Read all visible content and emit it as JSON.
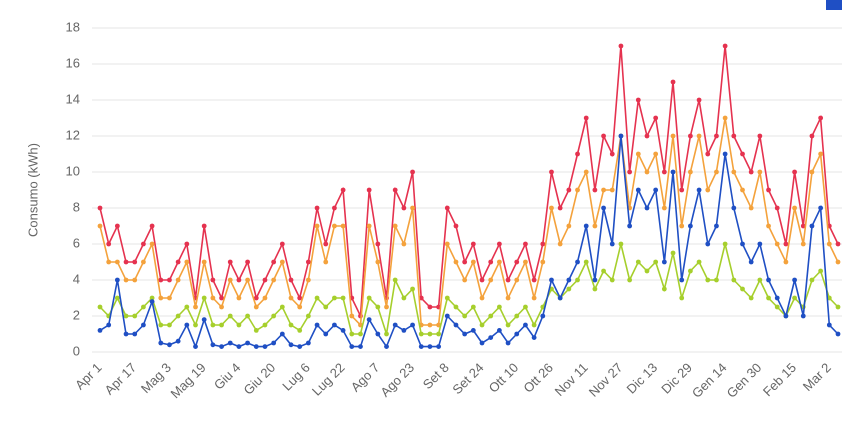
{
  "chart_data": {
    "type": "line",
    "y_label": "Consumo (kWh)",
    "categories": [
      "Apr 1",
      null,
      null,
      null,
      "Apr 17",
      null,
      null,
      null,
      "Mag 3",
      null,
      null,
      null,
      "Mag 19",
      null,
      null,
      null,
      "Giu 4",
      null,
      null,
      null,
      "Giu 20",
      null,
      null,
      null,
      "Lug 6",
      null,
      null,
      null,
      "Lug 22",
      null,
      null,
      null,
      "Ago 7",
      null,
      null,
      null,
      "Ago 23",
      null,
      null,
      null,
      "Set 8",
      null,
      null,
      null,
      "Set 24",
      null,
      null,
      null,
      "Ott 10",
      null,
      null,
      null,
      "Ott 26",
      null,
      null,
      null,
      "Nov 11",
      null,
      null,
      null,
      "Nov 27",
      null,
      null,
      null,
      "Dic 13",
      null,
      null,
      null,
      "Dic 29",
      null,
      null,
      null,
      "Gen 14",
      null,
      null,
      null,
      "Gen 30",
      null,
      null,
      null,
      "Feb 15",
      null,
      null,
      null,
      "Mar 2",
      null
    ],
    "series": [
      {
        "color": "#e5324f",
        "values": [
          8,
          6,
          7,
          5,
          5,
          6,
          7,
          4,
          4,
          5,
          6,
          3,
          7,
          4,
          3,
          5,
          4,
          5,
          3,
          4,
          5,
          6,
          4,
          3,
          5,
          8,
          6,
          8,
          9,
          3,
          2,
          9,
          6,
          3,
          9,
          8,
          10,
          3,
          2.5,
          2.5,
          8,
          7,
          5,
          6,
          4,
          5,
          6,
          4,
          5,
          6,
          4,
          6,
          10,
          8,
          9,
          11,
          13,
          9,
          12,
          11,
          17,
          10,
          14,
          12,
          13,
          10,
          15,
          9,
          12,
          14,
          11,
          12,
          17,
          12,
          11,
          10,
          12,
          9,
          8,
          6,
          10,
          7,
          12,
          13,
          7,
          6
        ]
      },
      {
        "color": "#f4a23c",
        "values": [
          7,
          5,
          5,
          4,
          4,
          5,
          6,
          3,
          3,
          4,
          5,
          2.5,
          5,
          3,
          2.5,
          4,
          3,
          4,
          2.5,
          3,
          4,
          5,
          3,
          2.5,
          4,
          7,
          5,
          7,
          7,
          2,
          1.5,
          7,
          5,
          2.5,
          7,
          6,
          8,
          1.5,
          1.5,
          1.5,
          6,
          5,
          4,
          5,
          3,
          4,
          5,
          3,
          4,
          5,
          3,
          5,
          8,
          6,
          7,
          9,
          10,
          7,
          9,
          9,
          12,
          8,
          11,
          10,
          11,
          8,
          12,
          7,
          10,
          12,
          9,
          10,
          13,
          10,
          9,
          8,
          10,
          7,
          6,
          5,
          8,
          6,
          10,
          11,
          6,
          5
        ]
      },
      {
        "color": "#a6cf2c",
        "values": [
          2.5,
          2,
          3,
          2,
          2,
          2.5,
          3,
          1.5,
          1.5,
          2,
          2.5,
          1.5,
          3,
          1.5,
          1.5,
          2,
          1.5,
          2,
          1.2,
          1.5,
          2,
          2.5,
          1.5,
          1.2,
          2,
          3,
          2.5,
          3,
          3,
          1,
          1,
          3,
          2.5,
          1,
          4,
          3,
          3.5,
          1,
          1,
          1,
          3,
          2.5,
          2,
          2.5,
          1.5,
          2,
          2.5,
          1.5,
          2,
          2.5,
          1.5,
          2.5,
          3.5,
          3,
          3.5,
          4,
          5,
          3.5,
          4.5,
          4,
          6,
          4,
          5,
          4.5,
          5,
          3.5,
          5.5,
          3,
          4.5,
          5,
          4,
          4,
          6,
          4,
          3.5,
          3,
          4,
          3,
          2.5,
          2,
          3,
          2.5,
          4,
          4.5,
          3,
          2.5
        ]
      },
      {
        "color": "#1f4fc4",
        "values": [
          1.2,
          1.5,
          4,
          1,
          1,
          1.5,
          2.8,
          0.5,
          0.4,
          0.6,
          1.5,
          0.3,
          1.8,
          0.4,
          0.3,
          0.5,
          0.3,
          0.5,
          0.3,
          0.3,
          0.5,
          1,
          0.4,
          0.3,
          0.5,
          1.5,
          1,
          1.5,
          1.2,
          0.3,
          0.3,
          1.8,
          1,
          0.3,
          1.5,
          1.2,
          1.5,
          0.3,
          0.3,
          0.3,
          2,
          1.5,
          1,
          1.2,
          0.5,
          0.8,
          1.2,
          0.5,
          1,
          1.5,
          0.8,
          2,
          4,
          3,
          4,
          5,
          7,
          4,
          8,
          6,
          12,
          7,
          9,
          8,
          9,
          5,
          10,
          4,
          7,
          9,
          6,
          7,
          11,
          8,
          6,
          5,
          6,
          4,
          3,
          2,
          4,
          2,
          7,
          8,
          1.5,
          1
        ]
      }
    ],
    "ylim": [
      0,
      18
    ],
    "yticks": [
      0,
      2,
      4,
      6,
      8,
      10,
      12,
      14,
      16,
      18
    ],
    "grid": true
  }
}
